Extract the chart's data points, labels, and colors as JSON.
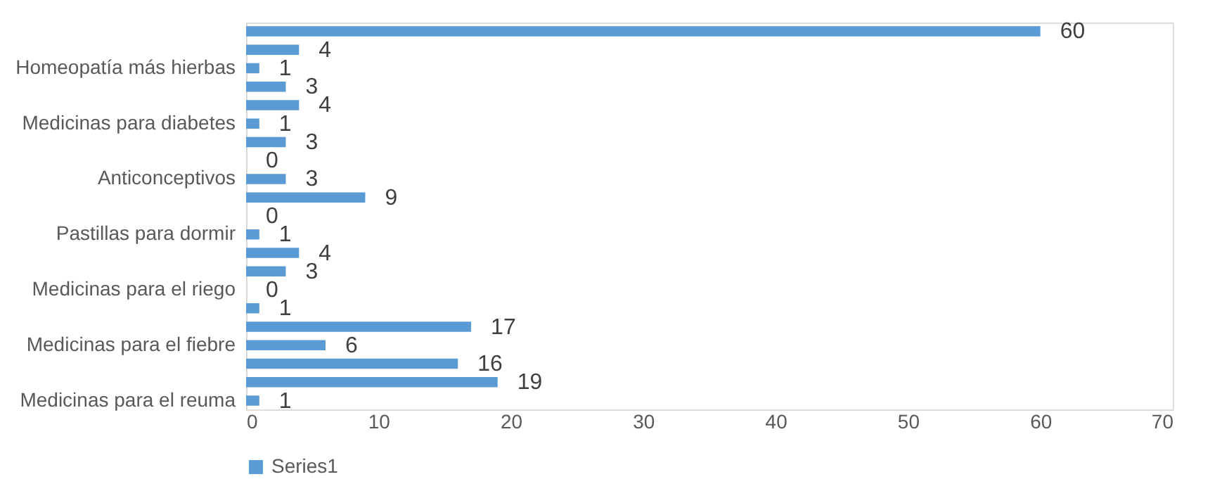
{
  "chart_data": {
    "type": "bar",
    "orientation": "horizontal",
    "categories": [
      null,
      null,
      "Homeopatía más hierbas",
      null,
      null,
      "Medicinas para diabetes",
      null,
      null,
      "Anticonceptivos",
      null,
      null,
      "Pastillas para dormir",
      null,
      null,
      "Medicinas para el riego",
      null,
      null,
      "Medicinas para el fiebre",
      null,
      null,
      "Medicinas para el reuma"
    ],
    "series": [
      {
        "name": "Series1",
        "color": "#5b9bd5",
        "values": [
          60,
          4,
          1,
          3,
          4,
          1,
          3,
          0,
          3,
          9,
          0,
          1,
          4,
          3,
          0,
          1,
          17,
          6,
          16,
          19,
          1
        ]
      }
    ],
    "xlim": [
      0,
      70
    ],
    "xticks": [
      0,
      10,
      20,
      30,
      40,
      50,
      60,
      70
    ],
    "data_labels": true,
    "grid": false,
    "legend": "bottom"
  }
}
